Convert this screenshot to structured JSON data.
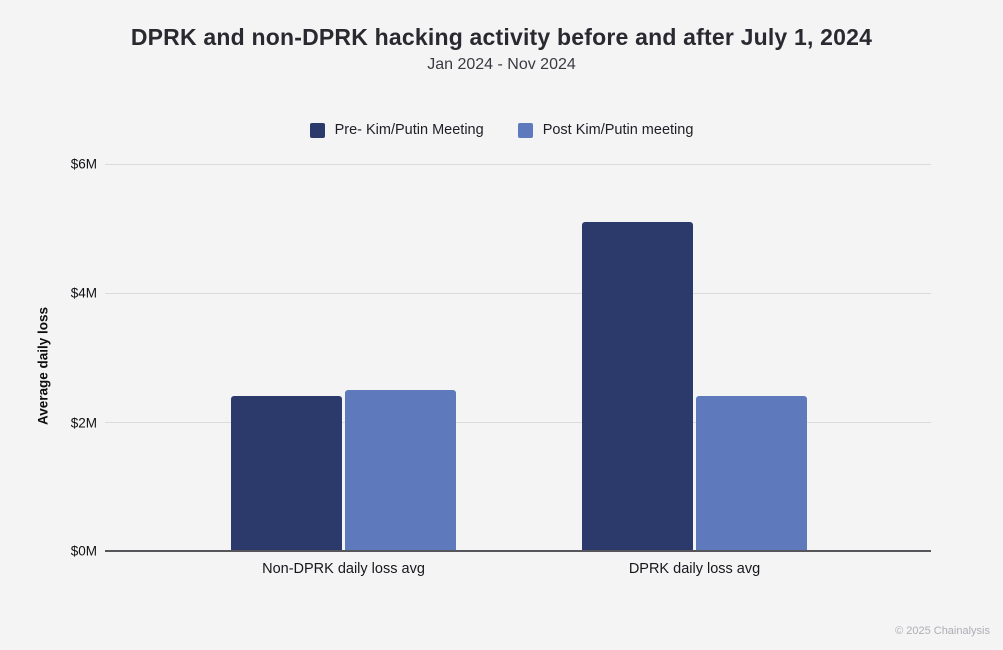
{
  "chart_data": {
    "type": "bar",
    "title": "DPRK and non-DPRK hacking activity before and after July 1, 2024",
    "subtitle": "Jan 2024 - Nov 2024",
    "categories": [
      "Non-DPRK daily loss avg",
      "DPRK daily loss avg"
    ],
    "series": [
      {
        "name": "Pre- Kim/Putin Meeting",
        "color": "#2b3a6b",
        "values": [
          2.4,
          5.1
        ]
      },
      {
        "name": "Post Kim/Putin meeting",
        "color": "#5e7abd",
        "values": [
          2.5,
          2.4
        ]
      }
    ],
    "xlabel": "",
    "ylabel": "Average daily loss",
    "ylim": [
      0,
      6
    ],
    "yticks": [
      "$0M",
      "$2M",
      "$4M",
      "$6M"
    ],
    "grid": true,
    "legend_position": "top-center",
    "background_color": "#f4f4f5",
    "gridline_color": "#dbdbde",
    "baseline_color": "#55555a"
  },
  "footer": {
    "copyright": "© 2025 Chainalysis"
  }
}
